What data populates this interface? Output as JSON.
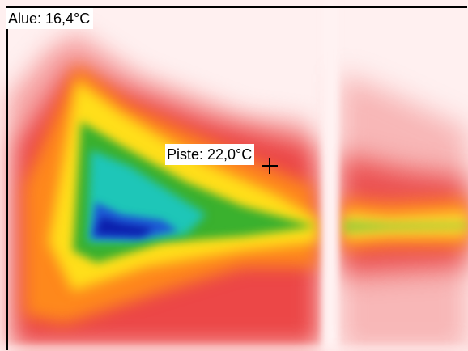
{
  "thermal_image": {
    "area_measurement": {
      "label": "Alue: 16,4°C"
    },
    "spot_measurement": {
      "label": "Piste: 22,0°C"
    },
    "palette": [
      "#ff0000",
      "#ffa000",
      "#ffff00",
      "#009000",
      "#00c8c8",
      "#1010c8"
    ]
  }
}
